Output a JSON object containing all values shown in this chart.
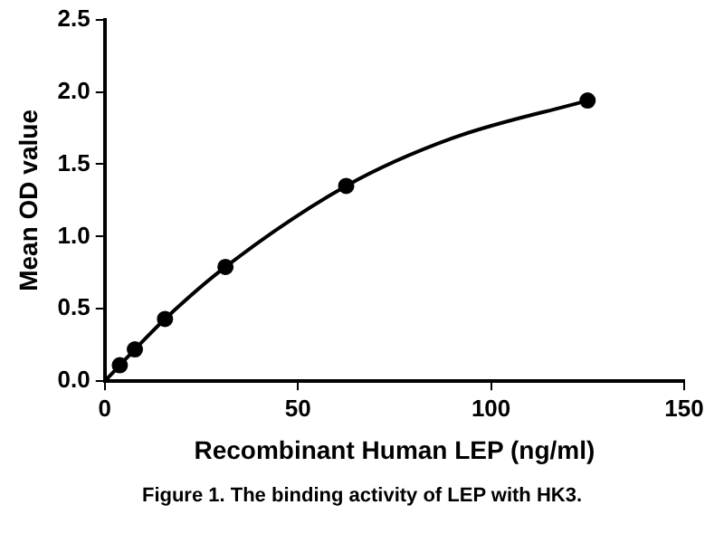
{
  "chart_data": {
    "type": "scatter",
    "xlabel": "Recombinant Human LEP (ng/ml)",
    "ylabel": "Mean OD value",
    "annotations": [
      "Figure 1. The binding activity of LEP with HK3."
    ],
    "series": [
      {
        "type": "scatter",
        "marker": "circle",
        "color": "#000000",
        "x": [
          3.9,
          7.8,
          15.6,
          31.25,
          62.5,
          125
        ],
        "values": [
          0.11,
          0.22,
          0.43,
          0.79,
          1.35,
          1.94
        ]
      },
      {
        "type": "line",
        "marker": "none",
        "color": "#000000",
        "x": [
          0,
          3.9,
          7.8,
          15.6,
          31.25,
          62.5,
          90,
          125
        ],
        "values": [
          0,
          0.11,
          0.22,
          0.43,
          0.79,
          1.35,
          1.68,
          1.94
        ]
      }
    ],
    "xlim": [
      0,
      150
    ],
    "xticks": [
      0,
      50,
      100,
      150
    ],
    "ylim": [
      0,
      2.5
    ],
    "yticks": [
      {
        "value": 0,
        "label": "0.0"
      },
      0.5,
      {
        "value": 1,
        "label": "1.0"
      },
      1.5,
      {
        "value": 2,
        "label": "2.0"
      },
      2.5
    ],
    "grid": false,
    "legend": false
  }
}
